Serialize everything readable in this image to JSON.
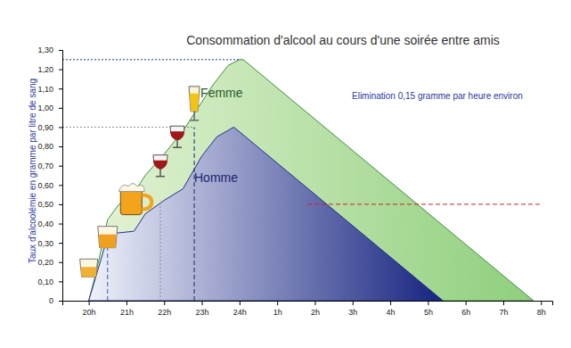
{
  "chart_data": {
    "type": "area",
    "title": "Consommation d'alcool au cours d'une soirée entre amis",
    "y_label": "Taux d'alcoolémie en gramme par litre de sang",
    "annotation": "Elimination 0,15 gramme par heure environ",
    "xlim": [
      19.3,
      32.3
    ],
    "xticks": [
      {
        "value": 20,
        "label": "20h"
      },
      {
        "value": 21,
        "label": "21h"
      },
      {
        "value": 22,
        "label": "22h"
      },
      {
        "value": 23,
        "label": "23h"
      },
      {
        "value": 24,
        "label": "24h"
      },
      {
        "value": 25,
        "label": "1h"
      },
      {
        "value": 26,
        "label": "2h"
      },
      {
        "value": 27,
        "label": "3h"
      },
      {
        "value": 28,
        "label": "4h"
      },
      {
        "value": 29,
        "label": "5h"
      },
      {
        "value": 30,
        "label": "6h"
      },
      {
        "value": 31,
        "label": "7h"
      },
      {
        "value": 32,
        "label": "8h"
      }
    ],
    "ylim": [
      0,
      1.3
    ],
    "yticks": [
      0,
      {
        "value": 0.1,
        "label": "0,10"
      },
      {
        "value": 0.2,
        "label": "0,20"
      },
      {
        "value": 0.3,
        "label": "0,30"
      },
      {
        "value": 0.4,
        "label": "0,40"
      },
      {
        "value": 0.5,
        "label": "0,50"
      },
      {
        "value": 0.6,
        "label": "0,60"
      },
      {
        "value": 0.7,
        "label": "0,70"
      },
      {
        "value": 0.8,
        "label": "0,80"
      },
      {
        "value": 0.9,
        "label": "0,90"
      },
      {
        "value": 1.0,
        "label": "1,00"
      },
      {
        "value": 1.1,
        "label": "1,10"
      },
      {
        "value": 1.2,
        "label": "1,20"
      },
      {
        "value": 1.3,
        "label": "1,30"
      }
    ],
    "grid": false,
    "series": [
      {
        "name": "Femme",
        "color": "#3f8f3a",
        "x": [
          20,
          20.2,
          20.5,
          20.8,
          21.2,
          21.5,
          22,
          22.5,
          22.9,
          23.3,
          23.7,
          24,
          24.1,
          31.8
        ],
        "values": [
          0,
          0.15,
          0.42,
          0.5,
          0.56,
          0.65,
          0.76,
          0.88,
          1.0,
          1.12,
          1.22,
          1.25,
          1.25,
          0
        ]
      },
      {
        "name": "Homme",
        "color": "#1f2f8f",
        "x": [
          20,
          20.5,
          20.7,
          21.2,
          21.5,
          22,
          22.5,
          23,
          23.4,
          23.85,
          29.4
        ],
        "values": [
          0,
          0.33,
          0.35,
          0.36,
          0.45,
          0.52,
          0.58,
          0.75,
          0.85,
          0.9,
          0
        ]
      }
    ],
    "drinks": [
      {
        "time": 20.0,
        "level": 0.17
      },
      {
        "time": 20.5,
        "level": 0.33
      },
      {
        "time": 21.15,
        "level": 0.52
      },
      {
        "time": 21.9,
        "level": 0.7
      },
      {
        "time": 22.35,
        "level": 0.85
      },
      {
        "time": 22.8,
        "level": 1.0
      }
    ],
    "reference_lines": [
      {
        "x": [
          19.3,
          24
        ],
        "y": [
          1.25,
          1.25
        ],
        "color": "#1a3a9a",
        "line_style": "dotted"
      },
      {
        "x": [
          19.3,
          22.8
        ],
        "y": [
          0.9,
          0.9
        ],
        "color": "#8a8a8a",
        "line_style": "dotted"
      },
      {
        "x": [
          22.8,
          22.8
        ],
        "y": [
          0,
          0.9
        ],
        "color": "#1a2a6a",
        "line_style": "dashed"
      },
      {
        "x": [
          20.5,
          20.5
        ],
        "y": [
          0,
          0.33
        ],
        "color": "#3a5ab0",
        "line_style": "dashed"
      },
      {
        "x": [
          21.9,
          21.9
        ],
        "y": [
          0,
          0.52
        ],
        "color": "#8a8aa0",
        "line_style": "dotted"
      },
      {
        "x": [
          25.8,
          32
        ],
        "y": [
          0.5,
          0.5
        ],
        "color": "#d02020",
        "line_style": "dashed"
      }
    ]
  }
}
